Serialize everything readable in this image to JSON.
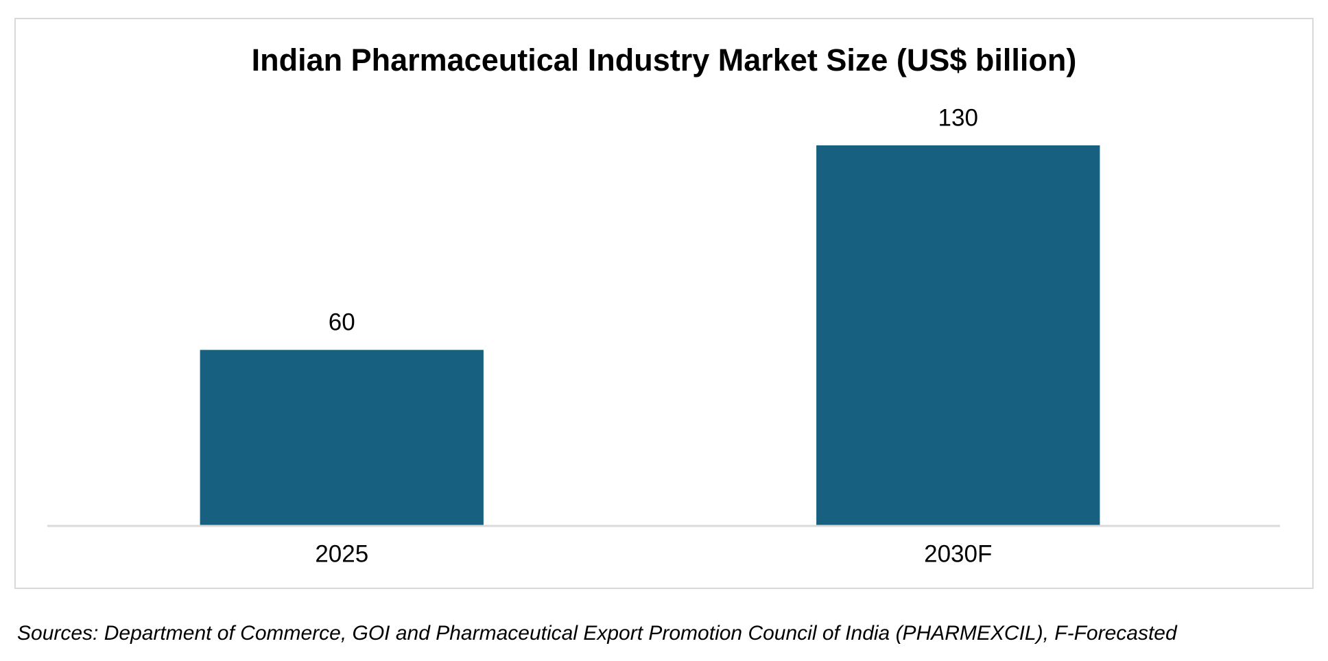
{
  "chart_data": {
    "type": "bar",
    "title": "Indian Pharmaceutical Industry Market Size (US$ billion)",
    "categories": [
      "2025",
      "2030F"
    ],
    "values": [
      60,
      130
    ],
    "color": "#17607f",
    "source": "Sources: Department of Commerce, GOI and Pharmaceutical Export Promotion Council of India (PHARMEXCIL), F-Forecasted"
  }
}
